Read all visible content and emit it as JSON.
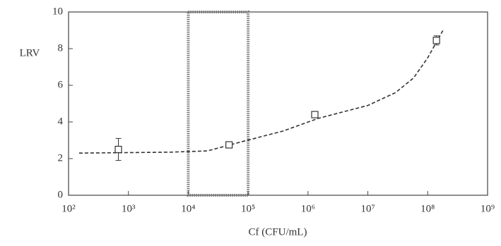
{
  "chart_data": {
    "type": "scatter",
    "xlabel": "Cf (CFU/mL)",
    "ylabel": "LRV",
    "xscale": "log",
    "xlim": [
      100,
      1000000000
    ],
    "ylim": [
      0,
      10
    ],
    "xticks": [
      {
        "value": 100,
        "label": "10²"
      },
      {
        "value": 1000,
        "label": "10³"
      },
      {
        "value": 10000,
        "label": "10⁴"
      },
      {
        "value": 100000,
        "label": "10⁵"
      },
      {
        "value": 1000000,
        "label": "10⁶"
      },
      {
        "value": 10000000,
        "label": "10⁷"
      },
      {
        "value": 100000000,
        "label": "10⁸"
      },
      {
        "value": 1000000000,
        "label": "10⁹"
      }
    ],
    "yticks": [
      0,
      2,
      4,
      6,
      8,
      10
    ],
    "highlight": [
      10000,
      100000
    ],
    "series": [
      {
        "color": "#333333",
        "x": [
          680,
          48000,
          1300000,
          140000000
        ],
        "values": [
          2.5,
          2.75,
          4.4,
          8.45
        ],
        "errors": [
          0.6,
          null,
          null,
          0.25
        ]
      }
    ],
    "fit": {
      "color": "#333333",
      "x": [
        150,
        4900,
        21000,
        74000,
        380000,
        1500000,
        10000000,
        29000000,
        58000000,
        100000000,
        180000000
      ],
      "values": [
        2.3,
        2.35,
        2.42,
        2.9,
        3.5,
        4.2,
        4.9,
        5.6,
        6.4,
        7.5,
        9.0
      ]
    }
  }
}
